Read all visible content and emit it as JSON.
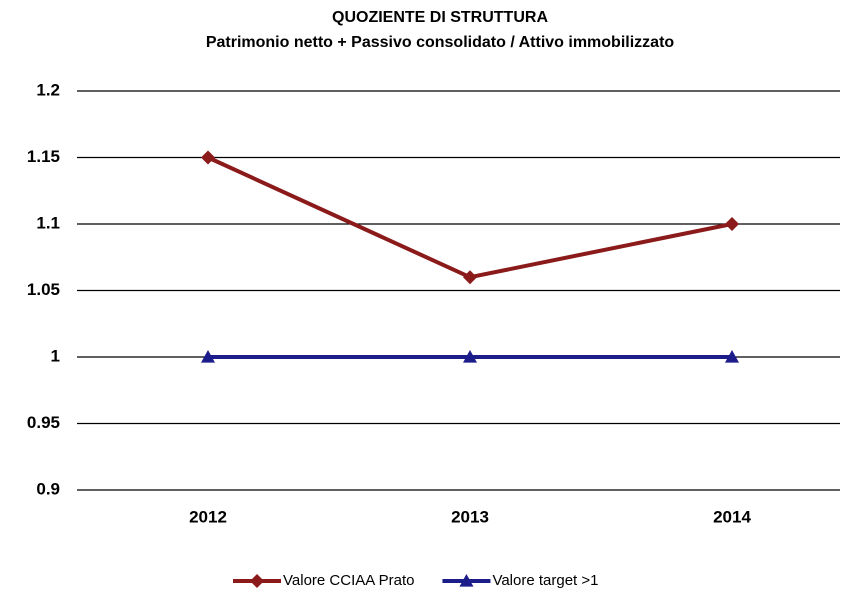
{
  "chart_data": {
    "type": "line",
    "title": "QUOZIENTE DI STRUTTURA",
    "subtitle": "Patrimonio netto + Passivo consolidato / Attivo immobilizzato",
    "categories": [
      "2012",
      "2013",
      "2014"
    ],
    "series": [
      {
        "name": "Valore CCIAA Prato",
        "color": "#8b1a1a",
        "marker": "diamond",
        "values": [
          1.15,
          1.06,
          1.1
        ]
      },
      {
        "name": "Valore target >1",
        "color": "#1c1c8a",
        "marker": "triangle",
        "values": [
          1,
          1,
          1
        ]
      }
    ],
    "ylim": [
      0.9,
      1.2
    ],
    "yticks": [
      0.9,
      0.95,
      1,
      1.05,
      1.1,
      1.15,
      1.2
    ],
    "grid": true,
    "legend": "bottom"
  }
}
